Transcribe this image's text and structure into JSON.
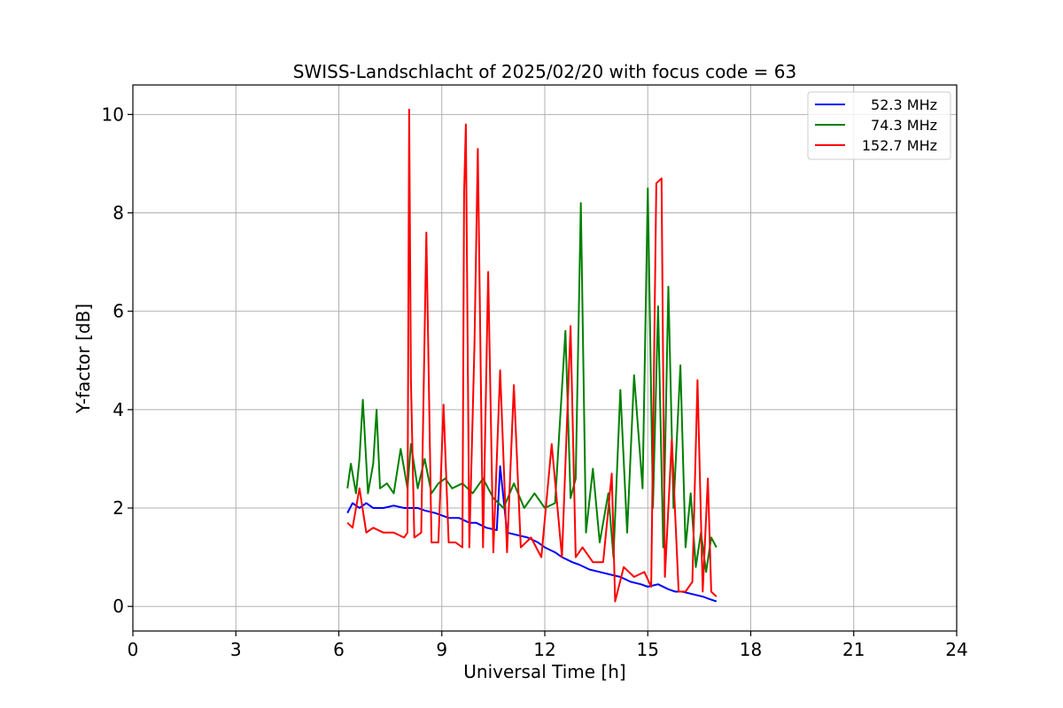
{
  "chart_data": {
    "type": "line",
    "title": "SWISS-Landschlacht of 2025/02/20 with focus code = 63",
    "xlabel": "Universal Time [h]",
    "ylabel": "Y-factor [dB]",
    "xlim": [
      0,
      24
    ],
    "ylim": [
      -0.5,
      10.6
    ],
    "xticks": [
      0,
      3,
      6,
      9,
      12,
      15,
      18,
      21,
      24
    ],
    "yticks": [
      0,
      2,
      4,
      6,
      8,
      10
    ],
    "grid": true,
    "legend_position": "top-right",
    "series": [
      {
        "name": "52.3 MHz",
        "color": "#0000ff",
        "x": [
          6.25,
          6.4,
          6.6,
          6.8,
          7.0,
          7.3,
          7.6,
          7.9,
          8.1,
          8.3,
          8.5,
          8.8,
          9.0,
          9.2,
          9.5,
          9.8,
          10.0,
          10.3,
          10.6,
          10.7,
          10.9,
          11.2,
          11.5,
          11.8,
          12.0,
          12.3,
          12.5,
          12.8,
          13.0,
          13.3,
          13.6,
          13.9,
          14.2,
          14.5,
          14.8,
          15.0,
          15.3,
          15.6,
          15.8,
          16.0,
          16.3,
          16.6,
          16.8,
          17.0
        ],
        "y": [
          1.9,
          2.1,
          2.0,
          2.1,
          2.0,
          2.0,
          2.05,
          2.0,
          2.0,
          2.0,
          1.95,
          1.9,
          1.85,
          1.8,
          1.8,
          1.7,
          1.7,
          1.6,
          1.55,
          2.85,
          1.5,
          1.45,
          1.4,
          1.3,
          1.2,
          1.1,
          1.0,
          0.9,
          0.85,
          0.75,
          0.7,
          0.65,
          0.6,
          0.5,
          0.45,
          0.4,
          0.45,
          0.35,
          0.3,
          0.3,
          0.25,
          0.2,
          0.15,
          0.1
        ]
      },
      {
        "name": "74.3 MHz",
        "color": "#008000",
        "x": [
          6.25,
          6.35,
          6.5,
          6.6,
          6.7,
          6.85,
          7.0,
          7.1,
          7.2,
          7.4,
          7.6,
          7.8,
          8.0,
          8.1,
          8.3,
          8.5,
          8.7,
          8.9,
          9.1,
          9.3,
          9.6,
          9.9,
          10.2,
          10.5,
          10.8,
          11.1,
          11.4,
          11.7,
          12.0,
          12.3,
          12.6,
          12.75,
          12.9,
          13.05,
          13.2,
          13.4,
          13.6,
          13.85,
          14.0,
          14.2,
          14.4,
          14.6,
          14.85,
          15.0,
          15.15,
          15.3,
          15.45,
          15.6,
          15.75,
          15.95,
          16.1,
          16.25,
          16.4,
          16.55,
          16.7,
          16.85,
          17.0
        ],
        "y": [
          2.4,
          2.9,
          2.3,
          3.0,
          4.2,
          2.3,
          2.9,
          4.0,
          2.4,
          2.5,
          2.3,
          3.2,
          2.4,
          3.3,
          2.4,
          3.0,
          2.3,
          2.5,
          2.6,
          2.4,
          2.5,
          2.3,
          2.6,
          2.2,
          2.0,
          2.5,
          2.0,
          2.3,
          2.0,
          2.1,
          5.6,
          2.2,
          2.6,
          8.2,
          1.5,
          2.8,
          1.3,
          2.3,
          1.0,
          4.4,
          1.5,
          4.7,
          2.4,
          8.5,
          2.0,
          6.1,
          1.2,
          6.5,
          2.0,
          4.9,
          1.2,
          2.3,
          0.8,
          1.5,
          0.7,
          1.4,
          1.2
        ]
      },
      {
        "name": "152.7 MHz",
        "color": "#ff0000",
        "x": [
          6.25,
          6.4,
          6.6,
          6.8,
          7.0,
          7.3,
          7.6,
          7.9,
          8.0,
          8.05,
          8.1,
          8.2,
          8.4,
          8.55,
          8.7,
          8.9,
          9.05,
          9.2,
          9.4,
          9.6,
          9.65,
          9.7,
          9.8,
          9.95,
          10.05,
          10.2,
          10.35,
          10.5,
          10.7,
          10.9,
          11.1,
          11.3,
          11.6,
          11.9,
          12.2,
          12.5,
          12.75,
          12.9,
          13.1,
          13.4,
          13.7,
          13.95,
          14.05,
          14.3,
          14.6,
          14.9,
          15.1,
          15.25,
          15.4,
          15.5,
          15.7,
          15.9,
          16.1,
          16.3,
          16.45,
          16.6,
          16.75,
          16.85,
          17.0
        ],
        "y": [
          1.7,
          1.6,
          2.4,
          1.5,
          1.6,
          1.5,
          1.5,
          1.4,
          1.5,
          10.1,
          4.6,
          1.4,
          1.5,
          7.6,
          1.3,
          1.3,
          4.1,
          1.3,
          1.3,
          1.2,
          8.4,
          9.8,
          1.2,
          5.3,
          9.3,
          1.2,
          6.8,
          1.1,
          4.8,
          1.1,
          4.5,
          1.2,
          1.4,
          1.0,
          3.3,
          1.0,
          5.7,
          1.0,
          1.2,
          0.9,
          0.9,
          2.7,
          0.1,
          0.8,
          0.6,
          0.7,
          0.4,
          8.6,
          8.7,
          0.6,
          3.4,
          0.3,
          0.3,
          0.5,
          4.6,
          0.3,
          2.6,
          0.3,
          0.2
        ]
      }
    ]
  }
}
